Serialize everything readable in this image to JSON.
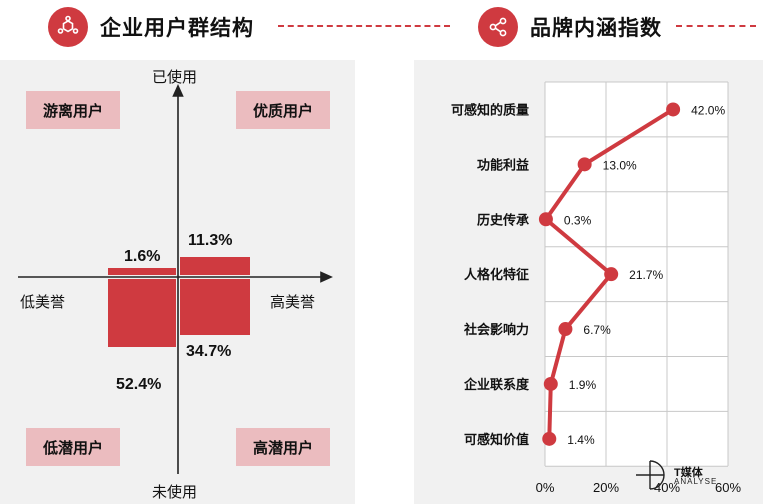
{
  "header_left": {
    "title": "企业用户群结构",
    "icon": "hexagon-molecule-icon"
  },
  "header_right": {
    "title": "品牌内涵指数",
    "icon": "share-nodes-icon"
  },
  "colors": {
    "accent": "#cf3a40",
    "quadrant_label_bg": "#ebbcbf",
    "panel_bg": "#f1f1f1"
  },
  "chart_data": [
    {
      "type": "bar",
      "axes": {
        "top": "已使用",
        "bottom": "未使用",
        "left": "低美誉",
        "right": "高美誉"
      },
      "quadrant_labels": {
        "top_left": "游离用户",
        "top_right": "优质用户",
        "bottom_left": "低潜用户",
        "bottom_right": "高潜用户"
      },
      "bars": [
        {
          "quadrant": "top_left",
          "value": 1.6,
          "label": "1.6%"
        },
        {
          "quadrant": "top_right",
          "value": 11.3,
          "label": "11.3%"
        },
        {
          "quadrant": "bottom_left",
          "value": 52.4,
          "label": "52.4%"
        },
        {
          "quadrant": "bottom_right",
          "value": 34.7,
          "label": "34.7%"
        }
      ]
    },
    {
      "type": "line",
      "orientation": "horizontal",
      "categories": [
        "可感知的质量",
        "功能利益",
        "历史传承",
        "人格化特征",
        "社会影响力",
        "企业联系度",
        "可感知价值"
      ],
      "values": [
        42.0,
        13.0,
        0.3,
        21.7,
        6.7,
        1.9,
        1.4
      ],
      "value_labels": [
        "42.0%",
        "13.0%",
        "0.3%",
        "21.7%",
        "6.7%",
        "1.9%",
        "1.4%"
      ],
      "xlim": [
        0,
        60
      ],
      "x_ticks": [
        0,
        20,
        40,
        60
      ],
      "x_tick_labels": [
        "0%",
        "20%",
        "40%",
        "60%"
      ],
      "grid": true
    }
  ],
  "logo": {
    "name": "T媒体",
    "sub": "ANALYSE"
  }
}
